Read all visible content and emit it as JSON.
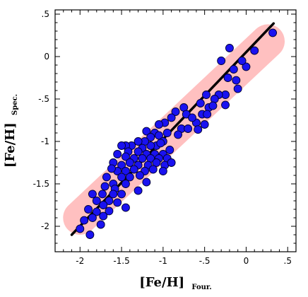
{
  "chart_data": {
    "type": "scatter",
    "xlabel": "[Fe/H]",
    "xlabel_sub": "Four.",
    "ylabel": "[Fe/H]",
    "ylabel_sub": "Spec.",
    "xlim": [
      -2.3,
      0.6
    ],
    "ylim": [
      -2.3,
      0.55
    ],
    "x_ticks": [
      -2,
      -1.5,
      -1,
      -0.5,
      0,
      0.5
    ],
    "x_tick_labels": [
      "-2",
      "-1.5",
      "-1",
      "-.5",
      "0",
      ".5"
    ],
    "y_ticks": [
      -2,
      -1.5,
      -1,
      -0.5,
      0,
      0.5
    ],
    "y_tick_labels": [
      "-2",
      "-1.5",
      "-1",
      "-.5",
      "0",
      ".5"
    ],
    "grid": false,
    "colors": {
      "points": "#1a12f0",
      "point_edge": "#000033",
      "band": "#ffc0c0",
      "fit_line": "#000000"
    },
    "fit_line": {
      "x": [
        -2.1,
        0.33
      ],
      "y": [
        -2.1,
        0.39
      ]
    },
    "band": {
      "x": [
        -2.0,
        0.26
      ],
      "y": [
        -1.9,
        0.18
      ]
    },
    "points": [
      {
        "x": 0.32,
        "y": 0.28
      },
      {
        "x": 0.1,
        "y": 0.07
      },
      {
        "x": -0.2,
        "y": 0.1
      },
      {
        "x": 0.0,
        "y": -0.12
      },
      {
        "x": -0.05,
        "y": -0.05
      },
      {
        "x": -0.15,
        "y": -0.15
      },
      {
        "x": -0.3,
        "y": -0.05
      },
      {
        "x": -0.22,
        "y": -0.25
      },
      {
        "x": -0.12,
        "y": -0.28
      },
      {
        "x": -0.1,
        "y": -0.38
      },
      {
        "x": -0.25,
        "y": -0.45
      },
      {
        "x": -0.33,
        "y": -0.45
      },
      {
        "x": -0.38,
        "y": -0.5
      },
      {
        "x": -0.48,
        "y": -0.45
      },
      {
        "x": -0.55,
        "y": -0.55
      },
      {
        "x": -0.45,
        "y": -0.6
      },
      {
        "x": -0.25,
        "y": -0.57
      },
      {
        "x": -0.53,
        "y": -0.68
      },
      {
        "x": -0.6,
        "y": -0.78
      },
      {
        "x": -0.47,
        "y": -0.68
      },
      {
        "x": -0.5,
        "y": -0.8
      },
      {
        "x": -0.75,
        "y": -0.6
      },
      {
        "x": -0.72,
        "y": -0.68
      },
      {
        "x": -0.65,
        "y": -0.72
      },
      {
        "x": -0.85,
        "y": -0.65
      },
      {
        "x": -0.9,
        "y": -0.72
      },
      {
        "x": -0.78,
        "y": -0.85
      },
      {
        "x": -0.7,
        "y": -0.85
      },
      {
        "x": -0.58,
        "y": -0.86
      },
      {
        "x": -0.98,
        "y": -0.78
      },
      {
        "x": -1.05,
        "y": -0.8
      },
      {
        "x": -0.95,
        "y": -0.9
      },
      {
        "x": -1.1,
        "y": -0.9
      },
      {
        "x": -1.2,
        "y": -0.88
      },
      {
        "x": -1.15,
        "y": -0.95
      },
      {
        "x": -1.05,
        "y": -0.93
      },
      {
        "x": -1.0,
        "y": -1.0
      },
      {
        "x": -1.08,
        "y": -1.05
      },
      {
        "x": -1.15,
        "y": -1.05
      },
      {
        "x": -1.22,
        "y": -1.0
      },
      {
        "x": -1.25,
        "y": -1.08
      },
      {
        "x": -1.3,
        "y": -1.0
      },
      {
        "x": -1.38,
        "y": -1.05
      },
      {
        "x": -1.45,
        "y": -1.05
      },
      {
        "x": -1.5,
        "y": -1.05
      },
      {
        "x": -1.42,
        "y": -1.12
      },
      {
        "x": -1.3,
        "y": -1.12
      },
      {
        "x": -1.2,
        "y": -1.15
      },
      {
        "x": -1.1,
        "y": -1.15
      },
      {
        "x": -1.0,
        "y": -1.15
      },
      {
        "x": -0.92,
        "y": -1.1
      },
      {
        "x": -0.95,
        "y": -1.2
      },
      {
        "x": -1.05,
        "y": -1.2
      },
      {
        "x": -1.15,
        "y": -1.2
      },
      {
        "x": -1.25,
        "y": -1.2
      },
      {
        "x": -1.35,
        "y": -1.2
      },
      {
        "x": -1.45,
        "y": -1.18
      },
      {
        "x": -1.55,
        "y": -1.15
      },
      {
        "x": -1.6,
        "y": -1.25
      },
      {
        "x": -1.5,
        "y": -1.28
      },
      {
        "x": -1.4,
        "y": -1.25
      },
      {
        "x": -1.3,
        "y": -1.28
      },
      {
        "x": -1.18,
        "y": -1.28
      },
      {
        "x": -1.08,
        "y": -1.25
      },
      {
        "x": -0.98,
        "y": -1.28
      },
      {
        "x": -0.9,
        "y": -1.25
      },
      {
        "x": -1.0,
        "y": -1.35
      },
      {
        "x": -1.12,
        "y": -1.33
      },
      {
        "x": -1.22,
        "y": -1.35
      },
      {
        "x": -1.35,
        "y": -1.33
      },
      {
        "x": -1.45,
        "y": -1.35
      },
      {
        "x": -1.55,
        "y": -1.35
      },
      {
        "x": -1.62,
        "y": -1.32
      },
      {
        "x": -1.5,
        "y": -1.42
      },
      {
        "x": -1.4,
        "y": -1.42
      },
      {
        "x": -1.28,
        "y": -1.4
      },
      {
        "x": -1.68,
        "y": -1.42
      },
      {
        "x": -1.6,
        "y": -1.5
      },
      {
        "x": -1.7,
        "y": -1.53
      },
      {
        "x": -1.58,
        "y": -1.56
      },
      {
        "x": -1.45,
        "y": -1.5
      },
      {
        "x": -1.2,
        "y": -1.48
      },
      {
        "x": -1.73,
        "y": -1.62
      },
      {
        "x": -1.6,
        "y": -1.62
      },
      {
        "x": -1.5,
        "y": -1.62
      },
      {
        "x": -1.85,
        "y": -1.62
      },
      {
        "x": -1.65,
        "y": -1.7
      },
      {
        "x": -1.8,
        "y": -1.7
      },
      {
        "x": -1.72,
        "y": -1.75
      },
      {
        "x": -1.55,
        "y": -1.72
      },
      {
        "x": -1.45,
        "y": -1.78
      },
      {
        "x": -1.65,
        "y": -1.82
      },
      {
        "x": -1.8,
        "y": -1.83
      },
      {
        "x": -1.9,
        "y": -1.8
      },
      {
        "x": -1.72,
        "y": -1.88
      },
      {
        "x": -1.85,
        "y": -1.9
      },
      {
        "x": -1.75,
        "y": -1.98
      },
      {
        "x": -1.95,
        "y": -1.93
      },
      {
        "x": -2.0,
        "y": -2.03
      },
      {
        "x": -1.88,
        "y": -2.1
      },
      {
        "x": -1.3,
        "y": -1.58
      },
      {
        "x": -1.03,
        "y": -1.02
      },
      {
        "x": -0.82,
        "y": -0.92
      },
      {
        "x": -0.4,
        "y": -0.58
      }
    ]
  }
}
